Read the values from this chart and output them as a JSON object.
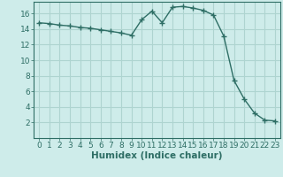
{
  "x": [
    0,
    1,
    2,
    3,
    4,
    5,
    6,
    7,
    8,
    9,
    10,
    11,
    12,
    13,
    14,
    15,
    16,
    17,
    18,
    19,
    20,
    21,
    22,
    23
  ],
  "y": [
    14.8,
    14.7,
    14.5,
    14.4,
    14.2,
    14.1,
    13.9,
    13.7,
    13.5,
    13.2,
    15.2,
    16.3,
    14.8,
    16.8,
    16.9,
    16.7,
    16.4,
    15.8,
    13.1,
    7.4,
    5.0,
    3.2,
    2.3,
    2.2
  ],
  "line_color": "#2e6e65",
  "marker": "+",
  "marker_size": 4,
  "background_color": "#ceecea",
  "grid_color": "#aed4d0",
  "xlabel": "Humidex (Indice chaleur)",
  "xlim": [
    -0.5,
    23.5
  ],
  "ylim": [
    0,
    17.5
  ],
  "yticks": [
    2,
    4,
    6,
    8,
    10,
    12,
    14,
    16
  ],
  "xticks": [
    0,
    1,
    2,
    3,
    4,
    5,
    6,
    7,
    8,
    9,
    10,
    11,
    12,
    13,
    14,
    15,
    16,
    17,
    18,
    19,
    20,
    21,
    22,
    23
  ],
  "tick_color": "#2e6e65",
  "xlabel_fontsize": 7.5,
  "tick_fontsize": 6.5,
  "linewidth": 1.0
}
